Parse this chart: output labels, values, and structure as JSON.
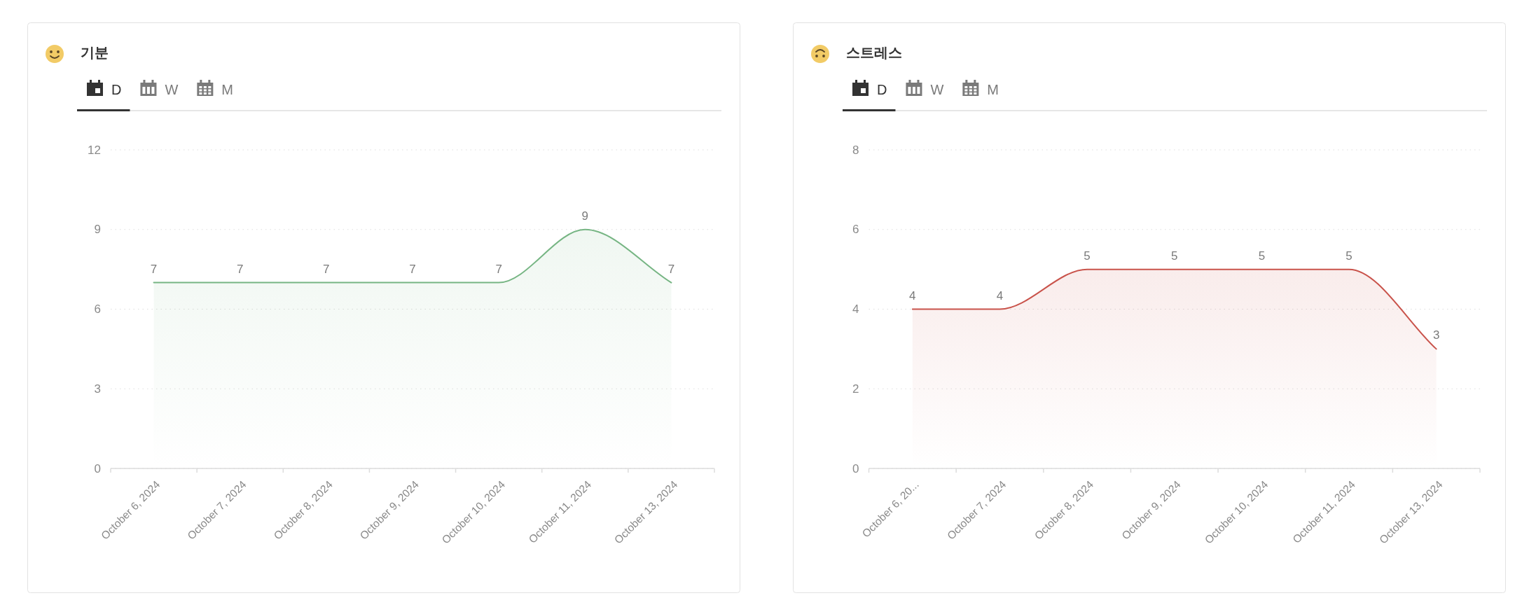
{
  "chart_data": [
    {
      "type": "area",
      "title": "기분",
      "annotations": [
        "D",
        "W",
        "M"
      ],
      "categories": [
        "October 6, 2024",
        "October 7, 2024",
        "October 8, 2024",
        "October 9, 2024",
        "October 10, 2024",
        "October 11, 2024",
        "October 13, 2024"
      ],
      "series": [
        {
          "color": "#76b583",
          "values": [
            7,
            7,
            7,
            7,
            7,
            9,
            7
          ]
        }
      ],
      "ylim": [
        0,
        12
      ],
      "yticks": [
        0,
        3,
        6,
        9,
        12
      ],
      "grid": "y",
      "data_labels": true
    },
    {
      "type": "area",
      "title": "스트레스",
      "annotations": [
        "D",
        "W",
        "M"
      ],
      "categories": [
        "October 6, 20...",
        "October 7, 2024",
        "October 8, 2024",
        "October 9, 2024",
        "October 10, 2024",
        "October 11, 2024",
        "October 13, 2024"
      ],
      "series": [
        {
          "color": "#c9534b",
          "values": [
            4,
            4,
            5,
            5,
            5,
            5,
            3
          ]
        }
      ],
      "ylim": [
        0,
        8
      ],
      "yticks": [
        0,
        2,
        4,
        6,
        8
      ],
      "grid": "y",
      "data_labels": true
    }
  ]
}
